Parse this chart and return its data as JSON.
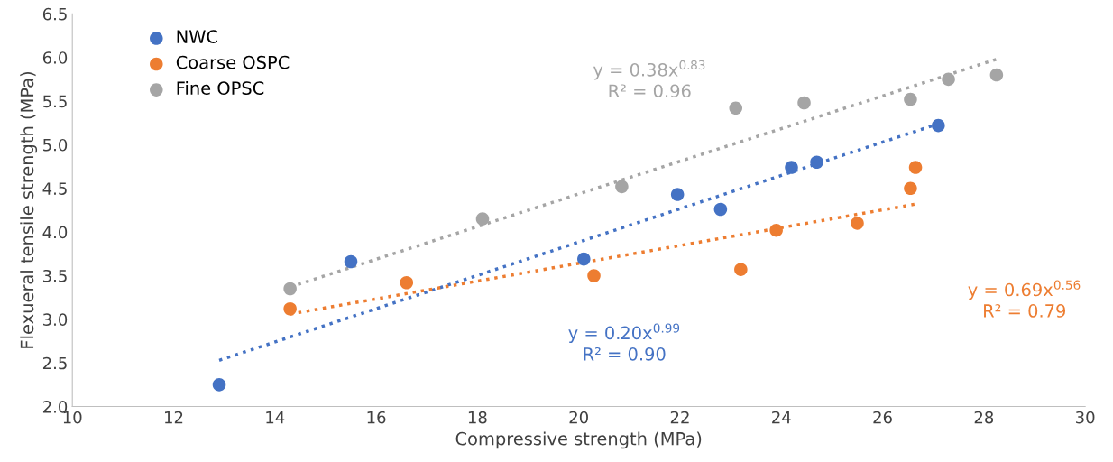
{
  "chart_data": {
    "type": "scatter",
    "xlabel": "Compressive strength (MPa)",
    "ylabel": "Flexueral tensile strength (MPa)",
    "xlim": [
      10,
      30
    ],
    "xticks": [
      10,
      12,
      14,
      16,
      18,
      20,
      22,
      24,
      26,
      28,
      30
    ],
    "ylim": [
      2.0,
      6.5
    ],
    "yticks": [
      {
        "value": 2.0,
        "label": "2.0"
      },
      {
        "value": 2.5,
        "label": "2.5"
      },
      {
        "value": 3.0,
        "label": "3.0"
      },
      {
        "value": 3.5,
        "label": "3.5"
      },
      {
        "value": 4.0,
        "label": "4.0"
      },
      {
        "value": 4.5,
        "label": "4.5"
      },
      {
        "value": 5.0,
        "label": "5.0"
      },
      {
        "value": 5.5,
        "label": "5.5"
      },
      {
        "value": 6.0,
        "label": "6.0"
      },
      {
        "value": 6.5,
        "label": "6.5"
      }
    ],
    "grid": false,
    "legend": "top left",
    "marker": "circle",
    "series": [
      {
        "name": "NWC",
        "color": "#4472c4",
        "x": [
          12.9,
          15.5,
          20.1,
          21.95,
          22.8,
          24.2,
          24.7,
          27.1
        ],
        "values": [
          2.25,
          3.66,
          3.69,
          4.43,
          4.26,
          4.74,
          4.8,
          5.22
        ]
      },
      {
        "name": "Coarse OSPC",
        "color": "#ed7d31",
        "x": [
          14.3,
          16.6,
          20.3,
          23.2,
          23.9,
          25.5,
          26.55,
          26.65
        ],
        "values": [
          3.12,
          3.42,
          3.5,
          3.57,
          4.02,
          4.1,
          4.5,
          4.74
        ]
      },
      {
        "name": "Fine OPSC",
        "color": "#a5a5a5",
        "x": [
          14.3,
          18.1,
          20.85,
          23.1,
          24.45,
          26.55,
          27.3,
          28.25
        ],
        "values": [
          3.35,
          4.15,
          4.52,
          5.42,
          5.48,
          5.52,
          5.75,
          5.8
        ]
      },
      {
        "type": "line",
        "line_style": "dotted",
        "marker": "none",
        "color": "#a5a5a5",
        "x": [
          14.3,
          28.25
        ],
        "values": [
          3.37,
          5.98
        ]
      },
      {
        "type": "line",
        "line_style": "dotted",
        "marker": "none",
        "color": "#4472c4",
        "x": [
          12.9,
          27.1
        ],
        "values": [
          2.53,
          5.24
        ]
      },
      {
        "type": "line",
        "line_style": "dotted",
        "marker": "none",
        "color": "#ed7d31",
        "x": [
          14.3,
          26.65
        ],
        "values": [
          3.06,
          4.32
        ]
      }
    ],
    "annotations": [
      "y = 0.38x$^{0.83}$\nR² = 0.96",
      "y = 0.20x$^{0.99}$\nR² = 0.90",
      "y = 0.69x$^{0.56}$\nR² = 0.79"
    ]
  }
}
